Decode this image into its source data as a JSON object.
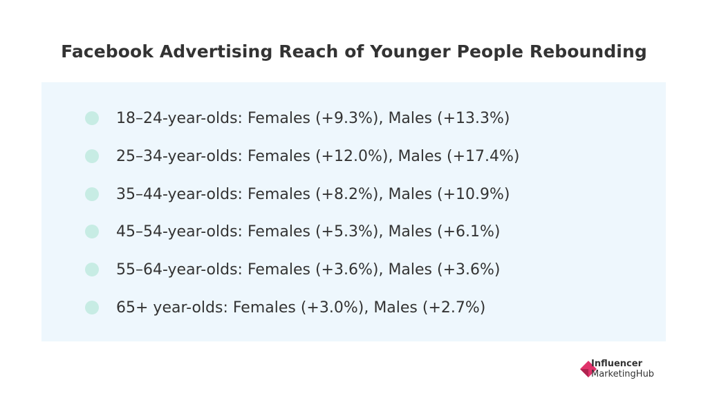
{
  "title": "Facebook Advertising Reach of Younger People Rebounding",
  "items": [
    {
      "text": "18–24-year-olds: Females (+9.3%), Males (+13.3%)"
    },
    {
      "text": "25–34-year-olds: Females (+12.0%), Males (+17.4%)"
    },
    {
      "text": "35–44-year-olds: Females (+8.2%), Males (+10.9%)"
    },
    {
      "text": "45–54-year-olds: Females (+5.3%), Males (+6.1%)"
    },
    {
      "text": "55–64-year-olds: Females (+3.6%), Males (+3.6%)"
    },
    {
      "text": "65+ year-olds: Females (+3.0%), Males (+2.7%)"
    }
  ],
  "logo": {
    "line1": "Influencer",
    "line2": "MarketingHub"
  },
  "colors": {
    "panel_background": "#eef7fd",
    "bullet": "#c7ece4",
    "text": "#333333",
    "logo_accent": "#e0336b"
  }
}
